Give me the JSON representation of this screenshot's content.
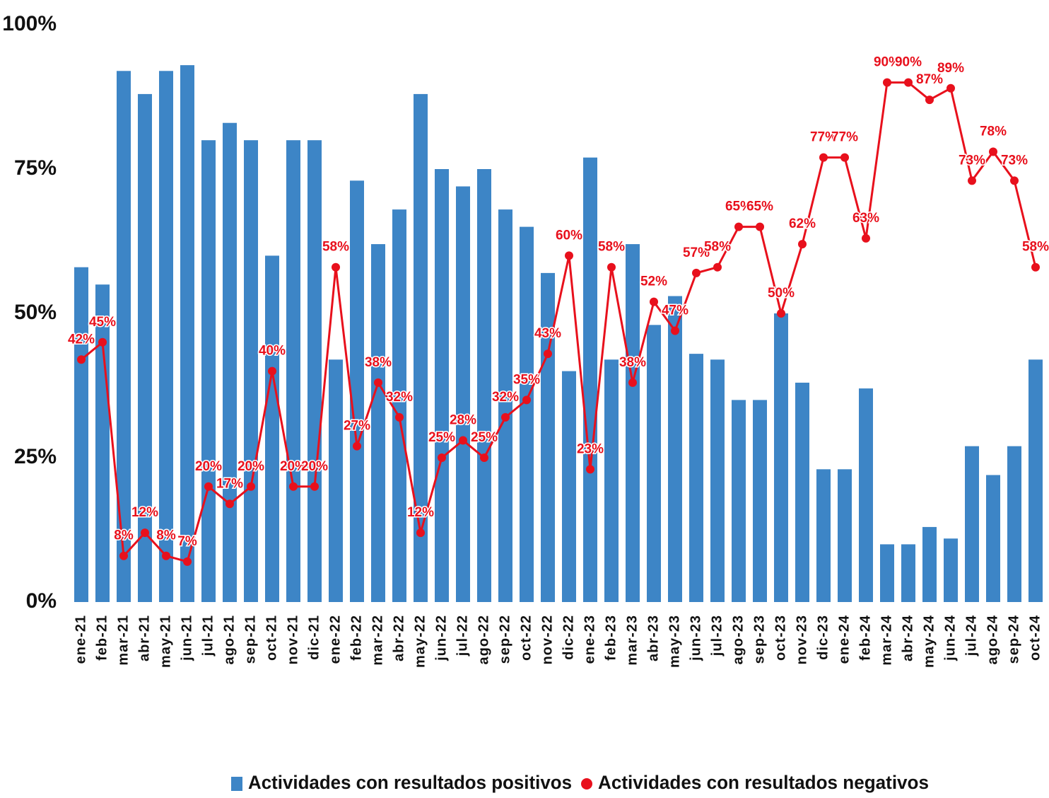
{
  "chart_data": {
    "type": "bar+line",
    "categories": [
      "ene-21",
      "feb-21",
      "mar-21",
      "abr-21",
      "may-21",
      "jun-21",
      "jul-21",
      "ago-21",
      "sep-21",
      "oct-21",
      "nov-21",
      "dic-21",
      "ene-22",
      "feb-22",
      "mar-22",
      "abr-22",
      "may-22",
      "jun-22",
      "jul-22",
      "ago-22",
      "sep-22",
      "oct-22",
      "nov-22",
      "dic-22",
      "ene-23",
      "feb-23",
      "mar-23",
      "abr-23",
      "may-23",
      "jun-23",
      "jul-23",
      "ago-23",
      "sep-23",
      "oct-23",
      "nov-23",
      "dic-23",
      "ene-24",
      "feb-24",
      "mar-24",
      "abr-24",
      "may-24",
      "jun-24",
      "jul-24",
      "ago-24",
      "sep-24",
      "oct-24"
    ],
    "series": [
      {
        "name": "Actividades con resultados positivos",
        "type": "bar",
        "color": "#3d85c6",
        "values": [
          58,
          55,
          92,
          88,
          92,
          93,
          80,
          83,
          80,
          60,
          80,
          80,
          42,
          73,
          62,
          68,
          88,
          75,
          72,
          75,
          68,
          65,
          57,
          40,
          77,
          42,
          62,
          48,
          53,
          43,
          42,
          35,
          35,
          50,
          38,
          23,
          23,
          37,
          10,
          10,
          13,
          11,
          27,
          22,
          27,
          42
        ]
      },
      {
        "name": "Actividades con resultados negativos",
        "type": "line",
        "color": "#e8101c",
        "values": [
          42,
          45,
          8,
          12,
          8,
          7,
          20,
          17,
          20,
          40,
          20,
          20,
          58,
          27,
          38,
          32,
          12,
          25,
          28,
          25,
          32,
          35,
          43,
          60,
          23,
          58,
          38,
          52,
          47,
          57,
          58,
          65,
          65,
          50,
          62,
          77,
          77,
          63,
          90,
          90,
          87,
          89,
          73,
          78,
          73,
          58
        ],
        "value_labels": [
          "42%",
          "45%",
          "8%",
          "12%",
          "8%",
          "7%",
          "20%",
          "17%",
          "20%",
          "40%",
          "20%",
          "20%",
          "58%",
          "27%",
          "38%",
          "32%",
          "12%",
          "25%",
          "28%",
          "25%",
          "32%",
          "35%",
          "43%",
          "60%",
          "23%",
          "58%",
          "38%",
          "52%",
          "47%",
          "57%",
          "58%",
          "65%",
          "65%",
          "50%",
          "62%",
          "77%",
          "77%",
          "63%",
          "90%",
          "90%",
          "87%",
          "89%",
          "73%",
          "78%",
          "73%",
          "58%"
        ]
      }
    ],
    "ylim": [
      0,
      100
    ],
    "yticks": [
      {
        "value": 0,
        "label": "0%"
      },
      {
        "value": 25,
        "label": "25%"
      },
      {
        "value": 50,
        "label": "50%"
      },
      {
        "value": 75,
        "label": "75%"
      },
      {
        "value": 100,
        "label": "100%"
      }
    ],
    "grid": false,
    "legend": "bottom"
  }
}
